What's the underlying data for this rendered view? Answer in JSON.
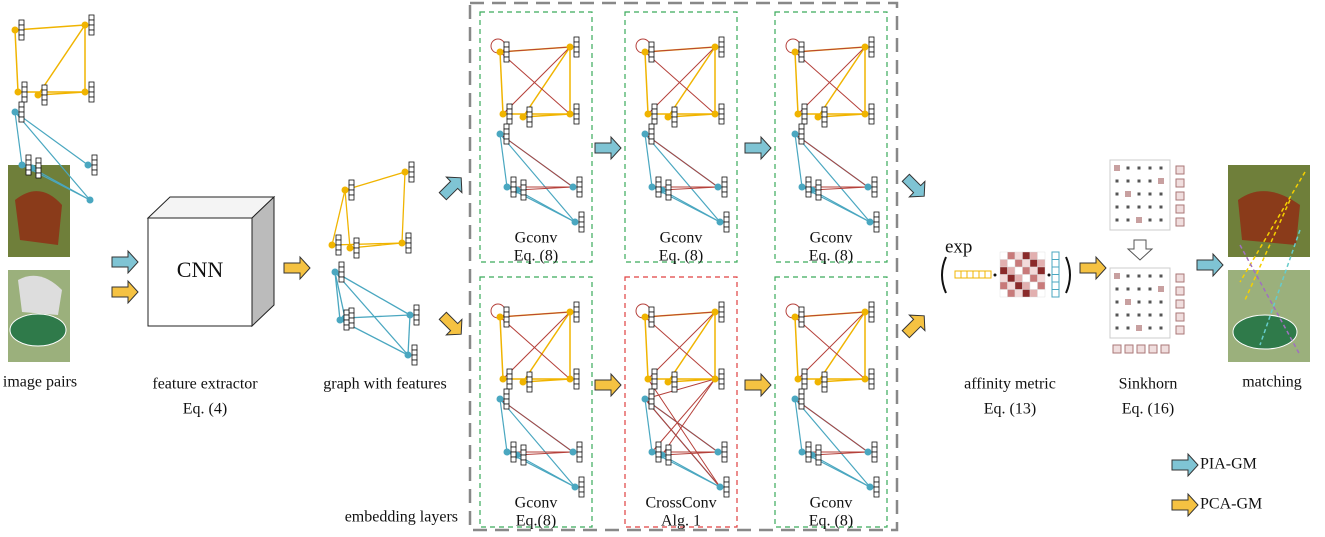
{
  "stages": [
    {
      "label": "image pairs"
    },
    {
      "label": "feature extractor",
      "ref": "Eq. (4)"
    },
    {
      "label": "graph with features"
    },
    {
      "label": "affinity metric",
      "ref": "Eq. (13)"
    },
    {
      "label": "Sinkhorn",
      "ref": "Eq. (16)"
    },
    {
      "label": "matching"
    }
  ],
  "cnn_label": "CNN",
  "panels": [
    {
      "label": "Gconv",
      "ref": "Eq. (8)"
    },
    {
      "label": "Gconv",
      "ref": "Eq. (8)"
    },
    {
      "label": "Gconv",
      "ref": "Eq. (8)"
    },
    {
      "label": "Gconv",
      "ref": "Eq.(8)"
    },
    {
      "label": "CrossConv",
      "ref": "Alg. 1"
    },
    {
      "label": "Gconv",
      "ref": "Eq. (8)"
    }
  ],
  "embedding_label": "embedding layers",
  "exp_label": "exp",
  "legend": [
    {
      "label": "PIA-GM"
    },
    {
      "label": "PCA-GM"
    }
  ]
}
